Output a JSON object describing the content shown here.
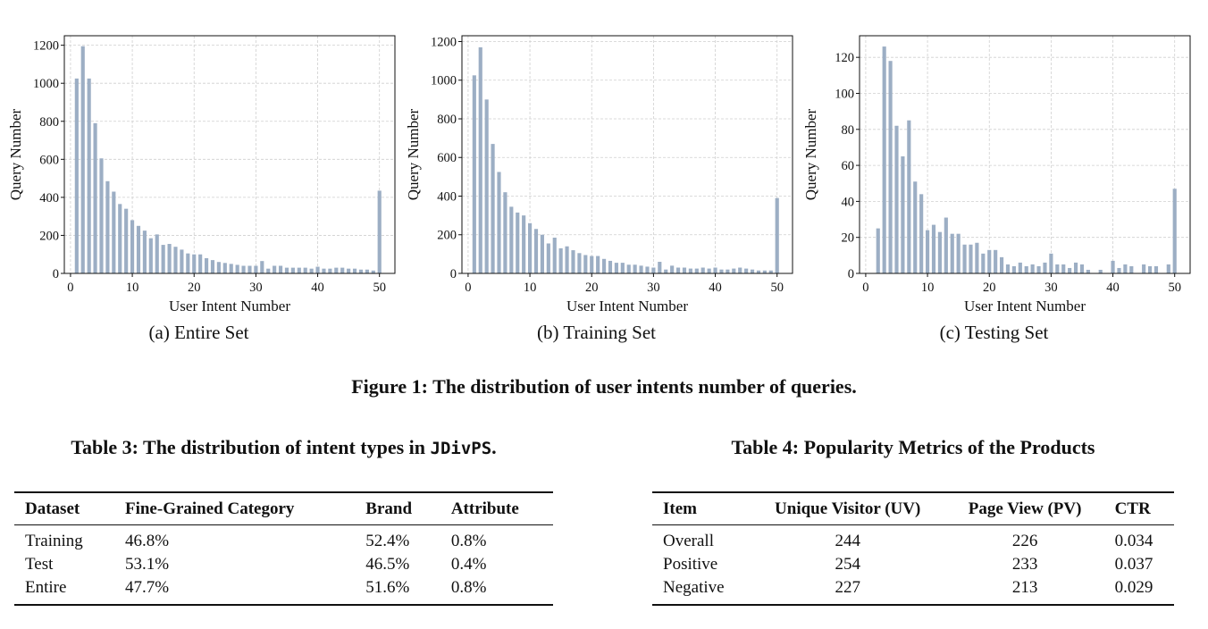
{
  "chart_data": [
    {
      "type": "bar",
      "caption": "(a) Entire Set",
      "xlabel": "User Intent Number",
      "ylabel": "Query Number",
      "xlim": [
        -1,
        52.5
      ],
      "ylim": [
        0,
        1250
      ],
      "xticks": [
        0,
        10,
        20,
        30,
        40,
        50
      ],
      "yticks": [
        0,
        200,
        400,
        600,
        800,
        1000,
        1200
      ],
      "grid": true,
      "bar_color": "#9caec4",
      "x": [
        1,
        2,
        3,
        4,
        5,
        6,
        7,
        8,
        9,
        10,
        11,
        12,
        13,
        14,
        15,
        16,
        17,
        18,
        19,
        20,
        21,
        22,
        23,
        24,
        25,
        26,
        27,
        28,
        29,
        30,
        31,
        32,
        33,
        34,
        35,
        36,
        37,
        38,
        39,
        40,
        41,
        42,
        43,
        44,
        45,
        46,
        47,
        48,
        49,
        50
      ],
      "values": [
        1025,
        1195,
        1025,
        790,
        605,
        485,
        430,
        365,
        340,
        280,
        250,
        225,
        185,
        205,
        150,
        155,
        140,
        125,
        105,
        100,
        100,
        80,
        70,
        60,
        55,
        50,
        45,
        40,
        40,
        40,
        65,
        25,
        40,
        40,
        30,
        30,
        30,
        30,
        25,
        35,
        25,
        25,
        30,
        30,
        25,
        25,
        20,
        20,
        15,
        435
      ]
    },
    {
      "type": "bar",
      "caption": "(b) Training Set",
      "xlabel": "User Intent Number",
      "ylabel": "Query Number",
      "xlim": [
        -1,
        52.5
      ],
      "ylim": [
        0,
        1230
      ],
      "xticks": [
        0,
        10,
        20,
        30,
        40,
        50
      ],
      "yticks": [
        0,
        200,
        400,
        600,
        800,
        1000,
        1200
      ],
      "grid": true,
      "bar_color": "#9caec4",
      "x": [
        1,
        2,
        3,
        4,
        5,
        6,
        7,
        8,
        9,
        10,
        11,
        12,
        13,
        14,
        15,
        16,
        17,
        18,
        19,
        20,
        21,
        22,
        23,
        24,
        25,
        26,
        27,
        28,
        29,
        30,
        31,
        32,
        33,
        34,
        35,
        36,
        37,
        38,
        39,
        40,
        41,
        42,
        43,
        44,
        45,
        46,
        47,
        48,
        49,
        50
      ],
      "values": [
        1025,
        1170,
        900,
        670,
        525,
        420,
        345,
        315,
        300,
        260,
        230,
        200,
        155,
        185,
        130,
        140,
        120,
        105,
        95,
        90,
        90,
        75,
        65,
        55,
        55,
        45,
        45,
        40,
        35,
        30,
        60,
        20,
        40,
        30,
        30,
        25,
        25,
        30,
        25,
        30,
        20,
        20,
        25,
        30,
        25,
        20,
        15,
        15,
        15,
        390
      ]
    },
    {
      "type": "bar",
      "caption": "(c) Testing Set",
      "xlabel": "User Intent Number",
      "ylabel": "Query Number",
      "xlim": [
        -1,
        52.5
      ],
      "ylim": [
        0,
        132
      ],
      "xticks": [
        0,
        10,
        20,
        30,
        40,
        50
      ],
      "yticks": [
        0,
        20,
        40,
        60,
        80,
        100,
        120
      ],
      "grid": true,
      "bar_color": "#9caec4",
      "x": [
        2,
        3,
        4,
        5,
        6,
        7,
        8,
        9,
        10,
        11,
        12,
        13,
        14,
        15,
        16,
        17,
        18,
        19,
        20,
        21,
        22,
        23,
        24,
        25,
        26,
        27,
        28,
        29,
        30,
        31,
        32,
        33,
        34,
        35,
        36,
        38,
        40,
        41,
        42,
        43,
        45,
        46,
        47,
        49,
        50
      ],
      "values": [
        25,
        126,
        118,
        82,
        65,
        85,
        51,
        44,
        24,
        27,
        23,
        31,
        22,
        22,
        16,
        16,
        17,
        11,
        13,
        13,
        9,
        5,
        4,
        6,
        4,
        5,
        4,
        6,
        11,
        5,
        5,
        3,
        6,
        5,
        2,
        2,
        7,
        3,
        5,
        4,
        5,
        4,
        4,
        5,
        47
      ]
    }
  ],
  "figure_caption": "Figure 1: The distribution of user intents number of queries.",
  "table3": {
    "caption_prefix": "Table 3: The distribution of intent types in ",
    "caption_code": "JDivPS",
    "caption_suffix": ".",
    "headers": [
      "Dataset",
      "Fine-Grained Category",
      "Brand",
      "Attribute"
    ],
    "rows": [
      [
        "Training",
        "46.8%",
        "52.4%",
        "0.8%"
      ],
      [
        "Test",
        "53.1%",
        "46.5%",
        "0.4%"
      ],
      [
        "Entire",
        "47.7%",
        "51.6%",
        "0.8%"
      ]
    ]
  },
  "table4": {
    "caption": "Table 4: Popularity Metrics of the Products",
    "headers": [
      "Item",
      "Unique Visitor (UV)",
      "Page View (PV)",
      "CTR"
    ],
    "rows": [
      [
        "Overall",
        "244",
        "226",
        "0.034"
      ],
      [
        "Positive",
        "254",
        "233",
        "0.037"
      ],
      [
        "Negative",
        "227",
        "213",
        "0.029"
      ]
    ]
  }
}
